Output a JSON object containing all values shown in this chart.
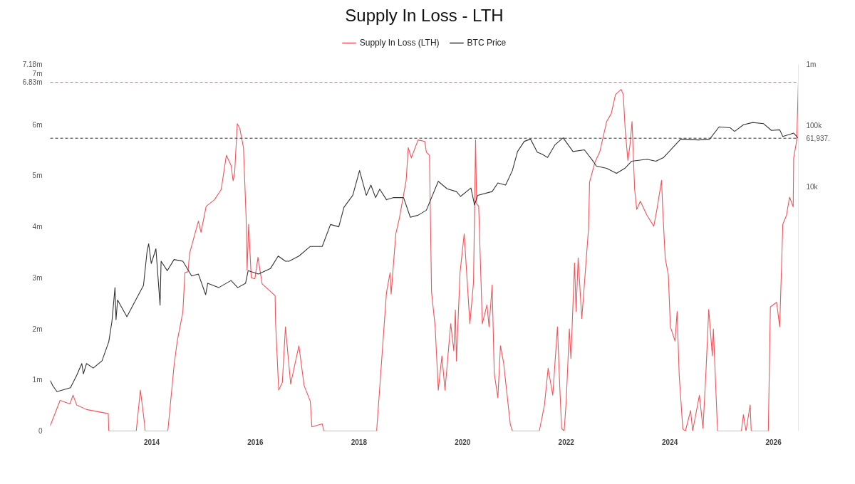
{
  "chart_data": {
    "type": "line",
    "title": "Supply In Loss - LTH",
    "legend": "top",
    "grid": false,
    "marker": "none",
    "line_style": "solid",
    "xlim": [
      2012.04,
      2026.48
    ],
    "xticks": [
      2014,
      2016,
      2018,
      2020,
      2022,
      2024,
      2026
    ],
    "ylim": [
      0,
      7180000
    ],
    "yticks": [
      {
        "value": 0,
        "label": "0"
      },
      {
        "value": 1000000,
        "label": "1m"
      },
      {
        "value": 2000000,
        "label": "2m"
      },
      {
        "value": 3000000,
        "label": "3m"
      },
      {
        "value": 4000000,
        "label": "4m"
      },
      {
        "value": 5000000,
        "label": "5m"
      },
      {
        "value": 6000000,
        "label": "6m"
      },
      {
        "value": 7000000,
        "label": "7m"
      },
      {
        "value": 7180000,
        "label": "7.18m"
      }
    ],
    "y2lim": [
      1,
      1000000
    ],
    "y2ticks": [
      {
        "value": 10000,
        "label": "10k"
      },
      {
        "value": 100000,
        "label": "100k"
      },
      {
        "value": 1000000,
        "label": "1m"
      }
    ],
    "log": "y2",
    "ref_lines": [
      {
        "axis": "y",
        "value": 6830000,
        "label": "6.83m",
        "color": "#f2545b",
        "line_style": "dashed"
      },
      {
        "axis": "y2",
        "value": 61937,
        "label": "61,937.",
        "color": "#333333",
        "line_style": "dashed"
      }
    ],
    "series": [
      {
        "name": "Supply In Loss (LTH)",
        "color": "#f2545b",
        "x": [
          2012.04,
          2012.23,
          2012.42,
          2012.48,
          2012.55,
          2012.74,
          2013.16,
          2013.17,
          2013.7,
          2013.78,
          2013.86,
          2013.87,
          2014.31,
          2014.43,
          2014.49,
          2014.6,
          2014.64,
          2014.7,
          2014.73,
          2014.9,
          2014.95,
          2015.05,
          2015.21,
          2015.34,
          2015.44,
          2015.53,
          2015.57,
          2015.6,
          2015.65,
          2015.7,
          2015.77,
          2015.82,
          2015.84,
          2015.87,
          2015.92,
          2015.99,
          2016.05,
          2016.13,
          2016.38,
          2016.39,
          2016.45,
          2016.52,
          2016.58,
          2016.68,
          2016.84,
          2016.94,
          2017.06,
          2017.09,
          2017.29,
          2017.32,
          2018.34,
          2018.53,
          2018.6,
          2018.62,
          2018.71,
          2018.78,
          2018.91,
          2018.95,
          2019.01,
          2019.14,
          2019.27,
          2019.3,
          2019.36,
          2019.4,
          2019.47,
          2019.53,
          2019.6,
          2019.66,
          2019.77,
          2019.83,
          2019.86,
          2019.88,
          2019.95,
          2020.03,
          2020.14,
          2020.21,
          2020.25,
          2020.27,
          2020.31,
          2020.38,
          2020.47,
          2020.51,
          2020.57,
          2020.61,
          2020.68,
          2020.73,
          2020.79,
          2020.92,
          2020.96,
          2021.48,
          2021.58,
          2021.65,
          2021.74,
          2021.83,
          2021.87,
          2021.91,
          2021.96,
          2022.0,
          2022.06,
          2022.09,
          2022.16,
          2022.19,
          2022.23,
          2022.3,
          2022.36,
          2022.43,
          2022.45,
          2022.55,
          2022.65,
          2022.78,
          2022.87,
          2022.95,
          2023.06,
          2023.1,
          2023.14,
          2023.19,
          2023.23,
          2023.27,
          2023.32,
          2023.36,
          2023.43,
          2023.56,
          2023.69,
          2023.75,
          2023.84,
          2023.86,
          2023.91,
          2023.97,
          2024.01,
          2024.1,
          2024.14,
          2024.18,
          2024.25,
          2024.3,
          2024.4,
          2024.44,
          2024.57,
          2024.64,
          2024.7,
          2024.75,
          2024.82,
          2024.84,
          2024.92,
          2025.38,
          2025.42,
          2025.47,
          2025.55,
          2025.57,
          2025.9,
          2025.94,
          2026.06,
          2026.12,
          2026.18,
          2026.25,
          2026.31,
          2026.38,
          2026.39,
          2026.44,
          2026.45,
          2026.48
        ],
        "values": [
          100000,
          600000,
          530000,
          700000,
          510000,
          420000,
          340000,
          0,
          0,
          800000,
          150000,
          0,
          0,
          1280000,
          1750000,
          2330000,
          3100000,
          3120000,
          3480000,
          4110000,
          3890000,
          4400000,
          4530000,
          4730000,
          5400000,
          5200000,
          4900000,
          5060000,
          6020000,
          5920000,
          5550000,
          4200000,
          3150000,
          4050000,
          3000000,
          2980000,
          3400000,
          2880000,
          2650000,
          2120000,
          800000,
          950000,
          2040000,
          920000,
          1670000,
          890000,
          580000,
          80000,
          140000,
          0,
          0,
          2710000,
          3100000,
          2680000,
          3860000,
          4170000,
          4910000,
          5550000,
          5350000,
          5700000,
          5670000,
          5460000,
          5400000,
          2720000,
          2040000,
          800000,
          1470000,
          800000,
          2100000,
          1570000,
          2370000,
          1370000,
          3100000,
          3860000,
          2100000,
          2910000,
          5700000,
          4450000,
          4400000,
          2100000,
          2470000,
          2040000,
          2860000,
          1130000,
          650000,
          1670000,
          1340000,
          130000,
          0,
          0,
          510000,
          1230000,
          700000,
          2040000,
          990000,
          50000,
          0,
          600000,
          2000000,
          1420000,
          3290000,
          2340000,
          3390000,
          2200000,
          3010000,
          3970000,
          4870000,
          5250000,
          5480000,
          6060000,
          6220000,
          6590000,
          6690000,
          6590000,
          5870000,
          5300000,
          5600000,
          6060000,
          4730000,
          4340000,
          4500000,
          4220000,
          4010000,
          4340000,
          4910000,
          4390000,
          3390000,
          3060000,
          2040000,
          1760000,
          2340000,
          1090000,
          40000,
          0,
          400000,
          0,
          700000,
          50000,
          1230000,
          2380000,
          1470000,
          2000000,
          0,
          0,
          320000,
          0,
          510000,
          0,
          0,
          2430000,
          2520000,
          2040000,
          4050000,
          4220000,
          4580000,
          4390000,
          5350000,
          5640000,
          5730000,
          6830000
        ]
      },
      {
        "name": "BTC Price",
        "color": "#333333",
        "axis": "y2",
        "x": [
          2012.04,
          2012.09,
          2012.17,
          2012.43,
          2012.55,
          2012.65,
          2012.68,
          2012.74,
          2012.87,
          2013.04,
          2013.17,
          2013.23,
          2013.29,
          2013.31,
          2013.34,
          2013.52,
          2013.69,
          2013.84,
          2013.91,
          2013.94,
          2013.99,
          2014.08,
          2014.16,
          2014.18,
          2014.3,
          2014.43,
          2014.6,
          2014.77,
          2014.9,
          2015.04,
          2015.08,
          2015.29,
          2015.53,
          2015.66,
          2015.81,
          2015.86,
          2016.06,
          2016.29,
          2016.44,
          2016.58,
          2016.65,
          2016.84,
          2017.06,
          2017.29,
          2017.45,
          2017.61,
          2017.71,
          2017.88,
          2018.01,
          2018.14,
          2018.23,
          2018.32,
          2018.4,
          2018.53,
          2018.66,
          2018.86,
          2018.99,
          2019.14,
          2019.3,
          2019.4,
          2019.53,
          2019.7,
          2019.88,
          2019.96,
          2020.16,
          2020.23,
          2020.29,
          2020.57,
          2020.68,
          2020.83,
          2020.96,
          2021.06,
          2021.19,
          2021.31,
          2021.44,
          2021.53,
          2021.64,
          2021.78,
          2021.94,
          2022.13,
          2022.35,
          2022.52,
          2022.58,
          2022.78,
          2022.97,
          2023.13,
          2023.26,
          2023.56,
          2023.73,
          2023.88,
          2024.04,
          2024.21,
          2024.56,
          2024.77,
          2024.95,
          2025.16,
          2025.25,
          2025.42,
          2025.6,
          2025.81,
          2025.96,
          2026.12,
          2026.18,
          2026.39,
          2026.48
        ],
        "values": [
          6.7,
          5.5,
          4.4,
          5.1,
          8.1,
          12.7,
          8.6,
          12.7,
          10.7,
          14.1,
          28.9,
          61,
          222,
          66,
          139,
          74,
          139,
          241,
          880,
          1160,
          550,
          960,
          115,
          600,
          420,
          640,
          600,
          345,
          370,
          170,
          262,
          222,
          290,
          222,
          262,
          420,
          370,
          455,
          730,
          600,
          600,
          730,
          1050,
          1050,
          2400,
          2200,
          4600,
          7200,
          18300,
          7200,
          10600,
          6600,
          9100,
          6100,
          6600,
          6600,
          3150,
          3400,
          4100,
          6600,
          12200,
          9200,
          8300,
          6900,
          9500,
          5000,
          7200,
          8300,
          11500,
          10600,
          18300,
          37500,
          55000,
          60000,
          36600,
          34000,
          30000,
          48000,
          63000,
          37500,
          40000,
          26000,
          21700,
          19900,
          16500,
          19900,
          26000,
          28000,
          26000,
          30000,
          42000,
          60000,
          58000,
          60000,
          95000,
          92000,
          80000,
          103000,
          112000,
          107000,
          83000,
          85000,
          66000,
          75000,
          61937
        ]
      }
    ]
  }
}
